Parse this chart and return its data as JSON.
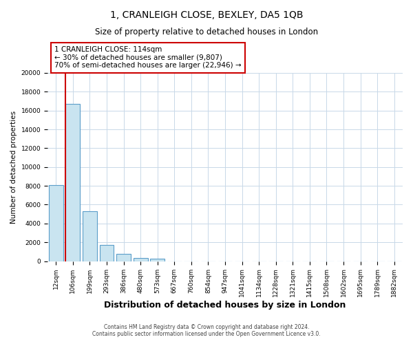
{
  "title": "1, CRANLEIGH CLOSE, BEXLEY, DA5 1QB",
  "subtitle": "Size of property relative to detached houses in London",
  "xlabel": "Distribution of detached houses by size in London",
  "ylabel": "Number of detached properties",
  "bar_labels": [
    "12sqm",
    "106sqm",
    "199sqm",
    "293sqm",
    "386sqm",
    "480sqm",
    "573sqm",
    "667sqm",
    "760sqm",
    "854sqm",
    "947sqm",
    "1041sqm",
    "1134sqm",
    "1228sqm",
    "1321sqm",
    "1415sqm",
    "1508sqm",
    "1602sqm",
    "1695sqm",
    "1789sqm",
    "1882sqm"
  ],
  "bar_heights": [
    8100,
    16700,
    5300,
    1750,
    800,
    300,
    250,
    0,
    0,
    0,
    0,
    0,
    0,
    0,
    0,
    0,
    0,
    0,
    0,
    0,
    0
  ],
  "bar_color": "#c9e4f0",
  "bar_edge_color": "#5b9dc9",
  "annotation_text_line1": "1 CRANLEIGH CLOSE: 114sqm",
  "annotation_text_line2": "← 30% of detached houses are smaller (9,807)",
  "annotation_text_line3": "70% of semi-detached houses are larger (22,946) →",
  "ylim": [
    0,
    20000
  ],
  "yticks": [
    0,
    2000,
    4000,
    6000,
    8000,
    10000,
    12000,
    14000,
    16000,
    18000,
    20000
  ],
  "footer1": "Contains HM Land Registry data © Crown copyright and database right 2024.",
  "footer2": "Contains public sector information licensed under the Open Government Licence v3.0.",
  "bg_color": "#ffffff",
  "grid_color": "#c8d8e8",
  "red_line_color": "#cc0000",
  "annotation_box_color": "#ffffff",
  "annotation_box_edge": "#cc0000",
  "title_fontsize": 10,
  "subtitle_fontsize": 8.5,
  "xlabel_fontsize": 9,
  "ylabel_fontsize": 7.5,
  "tick_fontsize": 6.5,
  "footer_fontsize": 5.5,
  "annot_fontsize": 7.5
}
